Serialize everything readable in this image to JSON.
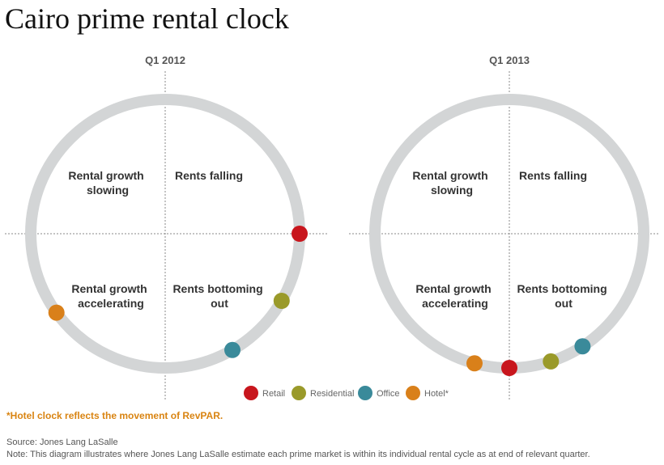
{
  "title": "Cairo prime rental clock",
  "colors": {
    "ring": "#d3d5d6",
    "axis": "#888888",
    "Retail": "#c8161d",
    "Residential": "#9a9a2a",
    "Office": "#3a8a9a",
    "Hotel*": "#d9801a"
  },
  "quadrant_labels": {
    "top_left": [
      "Rental growth",
      "slowing"
    ],
    "top_right": [
      "Rents falling"
    ],
    "bottom_left": [
      "Rental growth",
      "accelerating"
    ],
    "bottom_right": [
      "Rents bottoming",
      "out"
    ]
  },
  "clocks": [
    {
      "name": "Q1 2012",
      "markers": [
        {
          "segment": "Retail",
          "clock_position": 3.0
        },
        {
          "segment": "Residential",
          "clock_position": 4.0
        },
        {
          "segment": "Office",
          "clock_position": 5.0
        },
        {
          "segment": "Hotel*",
          "clock_position": 7.8
        }
      ]
    },
    {
      "name": "Q1 2013",
      "markers": [
        {
          "segment": "Office",
          "clock_position": 4.9
        },
        {
          "segment": "Residential",
          "clock_position": 5.4
        },
        {
          "segment": "Retail",
          "clock_position": 6.0
        },
        {
          "segment": "Hotel*",
          "clock_position": 6.5
        }
      ]
    }
  ],
  "legend": [
    "Retail",
    "Residential",
    "Office",
    "Hotel*"
  ],
  "hotel_note": "*Hotel clock reflects the movement of RevPAR.",
  "source": "Source: Jones Lang LaSalle",
  "note": "Note: This diagram illustrates where Jones Lang LaSalle estimate each prime market is within its individual rental cycle as at end of relevant quarter."
}
